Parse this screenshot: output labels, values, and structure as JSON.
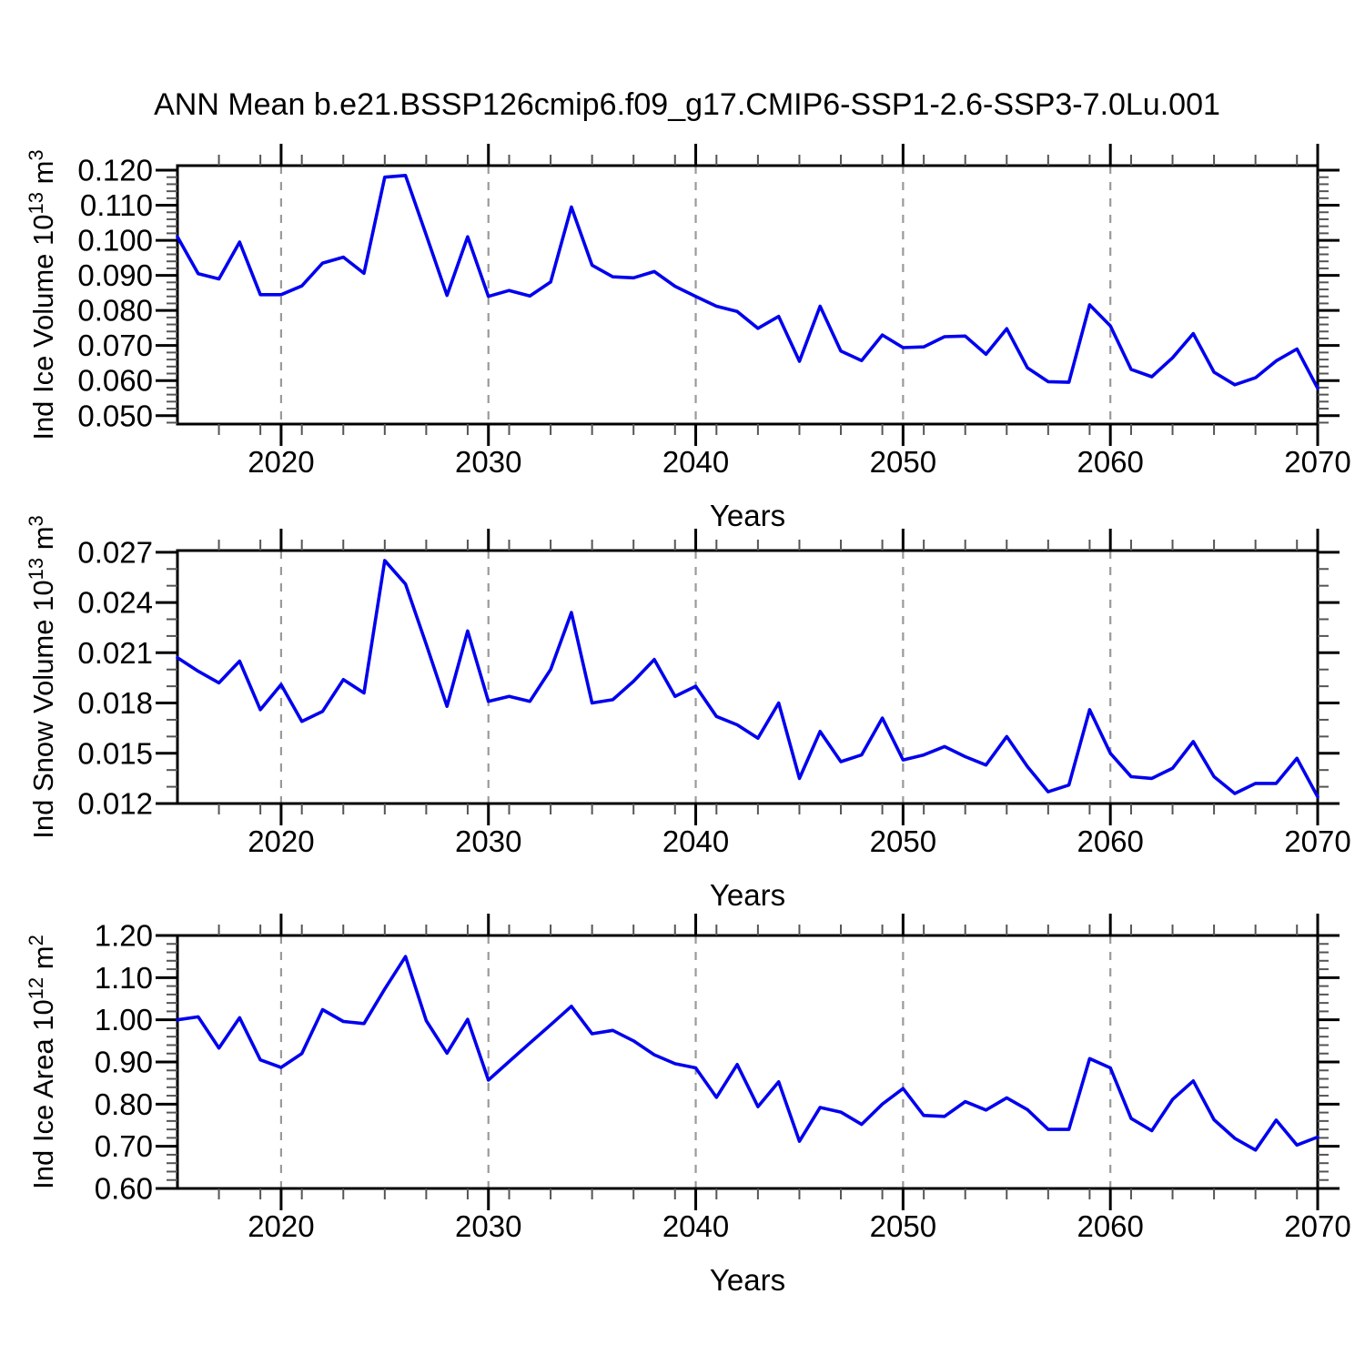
{
  "title": "ANN Mean b.e21.BSSP126cmip6.f09_g17.CMIP6-SSP1-2.6-SSP3-7.0Lu.001",
  "colors": {
    "line": "#0000EE",
    "grid": "#9A9A9A",
    "axis": "#000000",
    "minor_tick": "#555555",
    "text": "#000000",
    "background": "#FFFFFF"
  },
  "chart_data": [
    {
      "type": "line",
      "name": "ind-ice-volume",
      "ylabel_prefix": "Ind Ice Volume 10",
      "ylabel_sup1": "13",
      "ylabel_mid": " m",
      "ylabel_sup2": "3",
      "xlabel": "Years",
      "xlim": [
        2015,
        2070
      ],
      "xticks": [
        2020,
        2030,
        2040,
        2050,
        2060,
        2070
      ],
      "xtick_labels": [
        "2020",
        "2030",
        "2040",
        "2050",
        "2060",
        "2070"
      ],
      "xminor_step": 2,
      "gridlines": [
        2020,
        2030,
        2040,
        2050,
        2060
      ],
      "ylim": [
        0.0476,
        0.1213
      ],
      "yticks": [
        0.05,
        0.06,
        0.07,
        0.08,
        0.09,
        0.1,
        0.11,
        0.12
      ],
      "ytick_labels": [
        "0.050",
        "0.060",
        "0.070",
        "0.080",
        "0.090",
        "0.100",
        "0.110",
        "0.120"
      ],
      "yminor_step": 0.002,
      "grid": "x-dashed",
      "legend": "none",
      "x": [
        2015,
        2016,
        2017,
        2018,
        2019,
        2020,
        2021,
        2022,
        2023,
        2024,
        2025,
        2026,
        2027,
        2028,
        2029,
        2030,
        2031,
        2032,
        2033,
        2034,
        2035,
        2036,
        2037,
        2038,
        2039,
        2040,
        2041,
        2042,
        2043,
        2044,
        2045,
        2046,
        2047,
        2048,
        2049,
        2050,
        2051,
        2052,
        2053,
        2054,
        2055,
        2056,
        2057,
        2058,
        2059,
        2060,
        2061,
        2062,
        2063,
        2064,
        2065,
        2066,
        2067,
        2068,
        2069,
        2070
      ],
      "values": [
        0.101,
        0.0905,
        0.089,
        0.0995,
        0.0845,
        0.0845,
        0.087,
        0.0935,
        0.0952,
        0.0906,
        0.118,
        0.1185,
        0.1015,
        0.0843,
        0.101,
        0.084,
        0.0857,
        0.0841,
        0.0881,
        0.1095,
        0.0929,
        0.0896,
        0.0893,
        0.0911,
        0.0869,
        0.084,
        0.0812,
        0.0797,
        0.0749,
        0.0783,
        0.0655,
        0.0812,
        0.0684,
        0.0657,
        0.073,
        0.0694,
        0.0696,
        0.0725,
        0.0727,
        0.0675,
        0.0748,
        0.0636,
        0.0597,
        0.0595,
        0.0816,
        0.0756,
        0.0632,
        0.0611,
        0.0665,
        0.0734,
        0.0624,
        0.0588,
        0.0608,
        0.0656,
        0.069,
        0.0578
      ]
    },
    {
      "type": "line",
      "name": "ind-snow-volume",
      "ylabel_prefix": "Ind Snow Volume 10",
      "ylabel_sup1": "13",
      "ylabel_mid": " m",
      "ylabel_sup2": "3",
      "xlabel": "Years",
      "xlim": [
        2015,
        2070
      ],
      "xticks": [
        2020,
        2030,
        2040,
        2050,
        2060,
        2070
      ],
      "xtick_labels": [
        "2020",
        "2030",
        "2040",
        "2050",
        "2060",
        "2070"
      ],
      "xminor_step": 2,
      "gridlines": [
        2020,
        2030,
        2040,
        2050,
        2060
      ],
      "ylim": [
        0.012,
        0.0271
      ],
      "yticks": [
        0.012,
        0.015,
        0.018,
        0.021,
        0.024,
        0.027
      ],
      "ytick_labels": [
        "0.012",
        "0.015",
        "0.018",
        "0.021",
        "0.024",
        "0.027"
      ],
      "yminor_step": 0.001,
      "grid": "x-dashed",
      "legend": "none",
      "x": [
        2015,
        2016,
        2017,
        2018,
        2019,
        2020,
        2021,
        2022,
        2023,
        2024,
        2025,
        2026,
        2027,
        2028,
        2029,
        2030,
        2031,
        2032,
        2033,
        2034,
        2035,
        2036,
        2037,
        2038,
        2039,
        2040,
        2041,
        2042,
        2043,
        2044,
        2045,
        2046,
        2047,
        2048,
        2049,
        2050,
        2051,
        2052,
        2053,
        2054,
        2055,
        2056,
        2057,
        2058,
        2059,
        2060,
        2061,
        2062,
        2063,
        2064,
        2065,
        2066,
        2067,
        2068,
        2069,
        2070
      ],
      "values": [
        0.0207,
        0.0199,
        0.0192,
        0.0205,
        0.0176,
        0.0191,
        0.0169,
        0.0175,
        0.0194,
        0.0186,
        0.0265,
        0.0251,
        0.0215,
        0.0178,
        0.0223,
        0.0181,
        0.0184,
        0.0181,
        0.02,
        0.0234,
        0.018,
        0.0182,
        0.0193,
        0.0206,
        0.0184,
        0.019,
        0.0172,
        0.0167,
        0.0159,
        0.018,
        0.0135,
        0.0163,
        0.0145,
        0.0149,
        0.0171,
        0.0146,
        0.0149,
        0.0154,
        0.0148,
        0.0143,
        0.016,
        0.0142,
        0.0127,
        0.0131,
        0.0176,
        0.015,
        0.0136,
        0.0135,
        0.0141,
        0.0157,
        0.0136,
        0.0126,
        0.0132,
        0.0132,
        0.0147,
        0.0124
      ]
    },
    {
      "type": "line",
      "name": "ind-ice-area",
      "ylabel_prefix": "Ind Ice Area 10",
      "ylabel_sup1": "12",
      "ylabel_mid": " m",
      "ylabel_sup2": "2",
      "xlabel": "Years",
      "xlim": [
        2015,
        2070
      ],
      "xticks": [
        2020,
        2030,
        2040,
        2050,
        2060,
        2070
      ],
      "xtick_labels": [
        "2020",
        "2030",
        "2040",
        "2050",
        "2060",
        "2070"
      ],
      "xminor_step": 2,
      "gridlines": [
        2020,
        2030,
        2040,
        2050,
        2060
      ],
      "ylim": [
        0.6,
        1.2
      ],
      "yticks": [
        0.6,
        0.7,
        0.8,
        0.9,
        1.0,
        1.1,
        1.2
      ],
      "ytick_labels": [
        "0.60",
        "0.70",
        "0.80",
        "0.90",
        "1.00",
        "1.10",
        "1.20"
      ],
      "yminor_step": 0.02,
      "grid": "x-dashed",
      "legend": "none",
      "x": [
        2015,
        2016,
        2017,
        2018,
        2019,
        2020,
        2021,
        2022,
        2023,
        2024,
        2025,
        2026,
        2027,
        2028,
        2029,
        2030,
        2031,
        2032,
        2033,
        2034,
        2035,
        2036,
        2037,
        2038,
        2039,
        2040,
        2041,
        2042,
        2043,
        2044,
        2045,
        2046,
        2047,
        2048,
        2049,
        2050,
        2051,
        2052,
        2053,
        2054,
        2055,
        2056,
        2057,
        2058,
        2059,
        2060,
        2061,
        2062,
        2063,
        2064,
        2065,
        2066,
        2067,
        2068,
        2069,
        2070
      ],
      "values": [
        1.0,
        1.007,
        0.933,
        1.005,
        0.905,
        0.887,
        0.92,
        1.024,
        0.996,
        0.991,
        1.073,
        1.15,
        0.998,
        0.921,
        1.001,
        0.857,
        0.901,
        0.945,
        0.988,
        1.032,
        0.967,
        0.975,
        0.95,
        0.917,
        0.896,
        0.886,
        0.816,
        0.894,
        0.794,
        0.853,
        0.712,
        0.792,
        0.781,
        0.752,
        0.8,
        0.837,
        0.773,
        0.771,
        0.806,
        0.786,
        0.815,
        0.787,
        0.74,
        0.74,
        0.908,
        0.886,
        0.766,
        0.737,
        0.811,
        0.855,
        0.763,
        0.719,
        0.691,
        0.762,
        0.703,
        0.722
      ]
    }
  ]
}
